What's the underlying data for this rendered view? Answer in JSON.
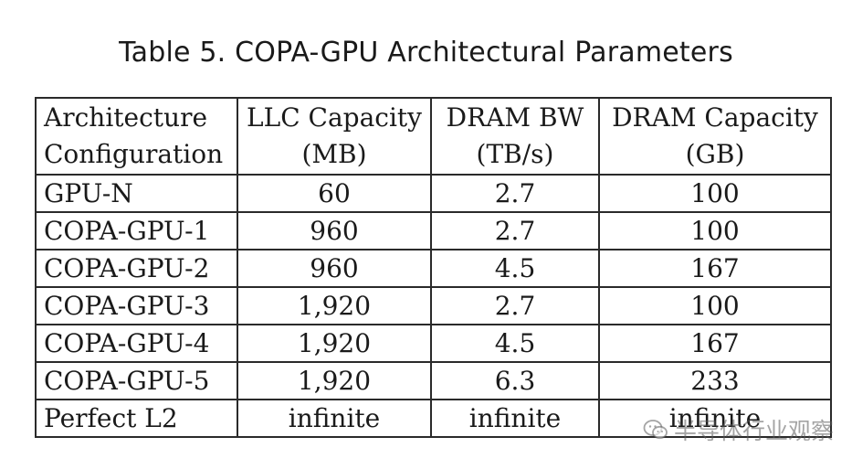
{
  "caption": "Table 5.  COPA-GPU Architectural Parameters",
  "table": {
    "headers": [
      [
        "Architecture",
        "Configuration"
      ],
      [
        "LLC Capacity",
        "(MB)"
      ],
      [
        "DRAM BW",
        "(TB/s)"
      ],
      [
        "DRAM Capacity",
        "(GB)"
      ]
    ],
    "rows": [
      [
        "GPU-N",
        "60",
        "2.7",
        "100"
      ],
      [
        "COPA-GPU-1",
        "960",
        "2.7",
        "100"
      ],
      [
        "COPA-GPU-2",
        "960",
        "4.5",
        "167"
      ],
      [
        "COPA-GPU-3",
        "1,920",
        "2.7",
        "100"
      ],
      [
        "COPA-GPU-4",
        "1,920",
        "4.5",
        "167"
      ],
      [
        "COPA-GPU-5",
        "1,920",
        "6.3",
        "233"
      ],
      [
        "Perfect L2",
        "infinite",
        "infinite",
        "infinite"
      ]
    ]
  },
  "watermark": {
    "text": "半导体行业观察",
    "icon": "wechat-icon"
  }
}
